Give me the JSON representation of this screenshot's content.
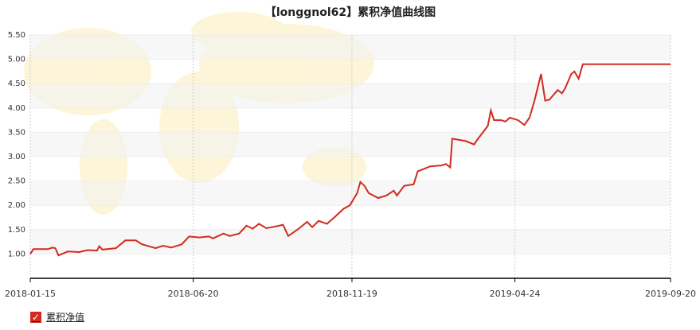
{
  "chart_data": {
    "type": "line",
    "title": "【longgnol62】累积净值曲线图",
    "x": [
      "2018-01-15",
      "2018-01-18",
      "2018-02-01",
      "2018-02-05",
      "2018-02-08",
      "2018-02-11",
      "2018-02-20",
      "2018-03-03",
      "2018-03-11",
      "2018-03-20",
      "2018-03-22",
      "2018-03-25",
      "2018-04-07",
      "2018-04-16",
      "2018-04-26",
      "2018-05-02",
      "2018-05-15",
      "2018-05-22",
      "2018-05-30",
      "2018-06-09",
      "2018-06-16",
      "2018-06-26",
      "2018-07-05",
      "2018-07-09",
      "2018-07-19",
      "2018-07-25",
      "2018-08-03",
      "2018-08-10",
      "2018-08-16",
      "2018-08-22",
      "2018-08-29",
      "2018-09-08",
      "2018-09-14",
      "2018-09-19",
      "2018-09-29",
      "2018-10-07",
      "2018-10-12",
      "2018-10-18",
      "2018-10-26",
      "2018-11-02",
      "2018-11-11",
      "2018-11-17",
      "2018-11-24",
      "2018-11-27",
      "2018-12-01",
      "2018-12-05",
      "2018-12-14",
      "2018-12-22",
      "2018-12-29",
      "2019-01-01",
      "2019-01-08",
      "2019-01-17",
      "2019-01-21",
      "2019-02-02",
      "2019-02-13",
      "2019-02-17",
      "2019-02-21",
      "2019-02-23",
      "2019-03-08",
      "2019-03-16",
      "2019-03-19",
      "2019-03-29",
      "2019-04-01",
      "2019-04-04",
      "2019-04-11",
      "2019-04-15",
      "2019-04-19",
      "2019-04-27",
      "2019-05-03",
      "2019-05-08",
      "2019-05-13",
      "2019-05-19",
      "2019-05-23",
      "2019-05-27",
      "2019-06-04",
      "2019-06-08",
      "2019-06-11",
      "2019-06-17",
      "2019-06-20",
      "2019-06-24",
      "2019-06-28",
      "2019-09-20"
    ],
    "series": [
      {
        "name": "累积净值",
        "color": "#d12b1f",
        "values": [
          1.0,
          1.1,
          1.1,
          1.13,
          1.12,
          0.97,
          1.05,
          1.04,
          1.08,
          1.07,
          1.16,
          1.09,
          1.12,
          1.28,
          1.28,
          1.2,
          1.12,
          1.17,
          1.13,
          1.2,
          1.36,
          1.34,
          1.36,
          1.32,
          1.42,
          1.37,
          1.42,
          1.58,
          1.52,
          1.62,
          1.53,
          1.57,
          1.6,
          1.37,
          1.52,
          1.66,
          1.55,
          1.68,
          1.62,
          1.75,
          1.93,
          2.0,
          2.25,
          2.48,
          2.4,
          2.25,
          2.15,
          2.2,
          2.3,
          2.2,
          2.4,
          2.43,
          2.7,
          2.8,
          2.82,
          2.85,
          2.78,
          3.37,
          3.32,
          3.25,
          3.35,
          3.63,
          3.95,
          3.75,
          3.75,
          3.72,
          3.8,
          3.75,
          3.65,
          3.8,
          4.17,
          4.7,
          4.15,
          4.17,
          4.37,
          4.3,
          4.4,
          4.7,
          4.75,
          4.6,
          4.9,
          4.9
        ]
      }
    ],
    "xlim": [
      "2018-01-15",
      "2019-09-20"
    ],
    "xticks": [
      "2018-01-15",
      "2018-06-20",
      "2018-11-19",
      "2019-04-24",
      "2019-09-20"
    ],
    "ylim": [
      0.5,
      5.5
    ],
    "yticks": [
      {
        "value": 1,
        "label": "1.00"
      },
      {
        "value": 1.5,
        "label": "1.50"
      },
      {
        "value": 2,
        "label": "2.00"
      },
      {
        "value": 2.5,
        "label": "2.50"
      },
      {
        "value": 3,
        "label": "3.00"
      },
      {
        "value": 3.5,
        "label": "3.50"
      },
      {
        "value": 4,
        "label": "4.00"
      },
      {
        "value": 4.5,
        "label": "4.50"
      },
      {
        "value": 5,
        "label": "5.00"
      },
      {
        "value": 5.5,
        "label": "5.50"
      }
    ],
    "grid": true
  }
}
